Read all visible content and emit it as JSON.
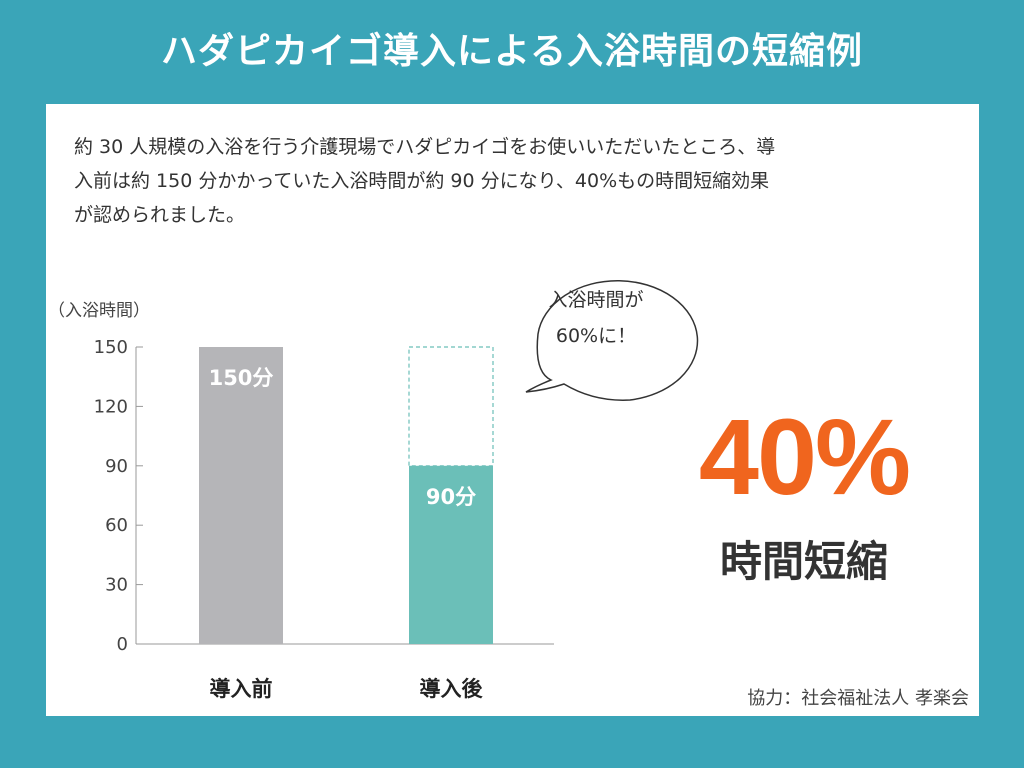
{
  "title": "ハダピカイゴ導入による入浴時間の短縮例",
  "intro_text": "約 30 人規模の入浴を行う介護現場でハダピカイゴをお使いいただいたところ、導\n入前は約 150 分かかっていた入浴時間が約 90 分になり、40%もの時間短縮効果\nが認められました。",
  "bubble": {
    "line1": "入浴時間が",
    "line2": "60%に！"
  },
  "highlight": {
    "value": "40%",
    "label": "時間短縮"
  },
  "credit": "協力：社会福祉法人 孝楽会",
  "colors": {
    "background": "#3aa5b8",
    "before_bar": "#b5b5b8",
    "after_bar": "#6bbfb8",
    "highlight": "#f0651e"
  },
  "chart_data": {
    "type": "bar",
    "ylabel": "（入浴時間）",
    "ylim": [
      0,
      150
    ],
    "yticks": [
      0,
      30,
      60,
      90,
      120,
      150
    ],
    "categories": [
      "導入前",
      "導入後"
    ],
    "values": [
      150,
      90
    ],
    "data_labels": [
      "150分",
      "90分"
    ],
    "reference_outline": {
      "category": "導入後",
      "value": 150,
      "style": "dashed"
    }
  }
}
